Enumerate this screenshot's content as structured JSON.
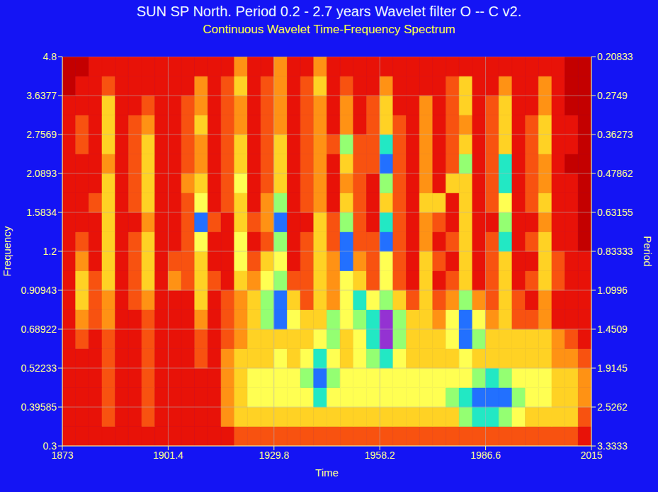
{
  "chart_data": {
    "type": "heatmap",
    "title": "SUN SP North. Period 0.2 - 2.7 years Wavelet filter O -- C v2.",
    "subtitle": "Continuous Wavelet Time-Frequency Spectrum",
    "x_label": "Time",
    "y_label": "Frequency",
    "y2_label": "Period",
    "log": "y",
    "grid": true,
    "xlim": [
      1873,
      2015
    ],
    "xticks": [
      1873,
      1901.4,
      1929.8,
      1958.2,
      1986.6,
      2015
    ],
    "ylim": [
      0.3,
      4.8
    ],
    "yticks": [
      0.3,
      0.39585,
      0.52233,
      0.68922,
      0.90943,
      1.2,
      1.5834,
      2.0893,
      2.7569,
      3.6377,
      4.8
    ],
    "y2lim": [
      3.3333,
      0.20833
    ],
    "y2ticks": [
      3.3333,
      2.5262,
      1.9145,
      1.4509,
      1.0996,
      0.83333,
      0.63155,
      0.47862,
      0.36273,
      0.2749,
      0.20833
    ],
    "x_edges": [
      1873,
      1876.55,
      1880.1,
      1883.65,
      1887.2,
      1890.75,
      1894.3,
      1897.85,
      1901.4,
      1904.95,
      1908.5,
      1912.05,
      1915.6,
      1919.15,
      1922.7,
      1926.25,
      1929.8,
      1933.35,
      1936.9,
      1940.45,
      1944,
      1947.55,
      1951.1,
      1954.65,
      1958.2,
      1961.75,
      1965.3,
      1968.85,
      1972.4,
      1975.95,
      1979.5,
      1983.05,
      1986.6,
      1990.15,
      1993.7,
      1997.25,
      2000.8,
      2004.35,
      2007.9,
      2011.45,
      2015
    ],
    "y_edges": [
      0.3,
      0.34462,
      0.39585,
      0.45472,
      0.52233,
      0.6,
      0.68922,
      0.79169,
      0.90943,
      1.0447,
      1.2,
      1.3784,
      1.5834,
      1.8189,
      2.0893,
      2.4,
      2.7569,
      3.1669,
      3.6377,
      4.1786,
      4.8
    ],
    "cells": [
      [
        1,
        1,
        1,
        1,
        1,
        1,
        1,
        1,
        1,
        1,
        1,
        1,
        1,
        2,
        2,
        2,
        2,
        2,
        2,
        2,
        2,
        2,
        2,
        2,
        2,
        2,
        2,
        2,
        2,
        2,
        2,
        2,
        2,
        2,
        2,
        2,
        2,
        2,
        2,
        1
      ],
      [
        1,
        1,
        1,
        2,
        1,
        1,
        2,
        1,
        1,
        1,
        1,
        1,
        3,
        4,
        4,
        4,
        4,
        4,
        4,
        4,
        4,
        4,
        4,
        4,
        4,
        4,
        4,
        4,
        4,
        4,
        6,
        7,
        7,
        6,
        5,
        4,
        4,
        4,
        4,
        2
      ],
      [
        1,
        1,
        1,
        2,
        1,
        1,
        2,
        1,
        1,
        1,
        1,
        1,
        3,
        4,
        5,
        5,
        5,
        5,
        5,
        7,
        5,
        5,
        5,
        5,
        5,
        5,
        5,
        5,
        5,
        6,
        7,
        8,
        8,
        8,
        6,
        5,
        5,
        4,
        4,
        3
      ],
      [
        1,
        1,
        1,
        2,
        1,
        1,
        2,
        1,
        1,
        1,
        1,
        1,
        3,
        4,
        5,
        5,
        5,
        5,
        6,
        8,
        6,
        5,
        5,
        5,
        5,
        5,
        5,
        5,
        5,
        5,
        5,
        6,
        7,
        6,
        5,
        5,
        5,
        4,
        4,
        3
      ],
      [
        1,
        1,
        1,
        2,
        1,
        1,
        2,
        1,
        1,
        1,
        2,
        1,
        3,
        4,
        4,
        4,
        5,
        4,
        5,
        7,
        5,
        4,
        5,
        6,
        7,
        5,
        4,
        4,
        4,
        4,
        5,
        4,
        4,
        4,
        4,
        4,
        4,
        3,
        3,
        2
      ],
      [
        1,
        2,
        1,
        2,
        1,
        1,
        2,
        1,
        1,
        1,
        2,
        1,
        2,
        3,
        4,
        4,
        4,
        4,
        4,
        5,
        6,
        4,
        5,
        7,
        9,
        6,
        4,
        4,
        4,
        5,
        8,
        6,
        4,
        4,
        4,
        4,
        4,
        3,
        2,
        1
      ],
      [
        1,
        3,
        2,
        3,
        1,
        1,
        2,
        1,
        1,
        1,
        3,
        1,
        2,
        3,
        4,
        6,
        8,
        5,
        4,
        4,
        6,
        5,
        6,
        7,
        9,
        6,
        4,
        4,
        3,
        5,
        8,
        5,
        3,
        4,
        2,
        2,
        3,
        1,
        1,
        1
      ],
      [
        1,
        4,
        2,
        3,
        1,
        2,
        3,
        1,
        1,
        1,
        4,
        1,
        2,
        3,
        4,
        6,
        8,
        4,
        2,
        4,
        3,
        5,
        7,
        5,
        6,
        4,
        2,
        4,
        2,
        3,
        6,
        3,
        2,
        4,
        2,
        1,
        3,
        1,
        1,
        1
      ],
      [
        1,
        4,
        2,
        4,
        1,
        2,
        4,
        1,
        3,
        2,
        4,
        2,
        1,
        4,
        3,
        5,
        6,
        2,
        2,
        4,
        3,
        5,
        4,
        2,
        5,
        2,
        1,
        4,
        1,
        2,
        4,
        1,
        2,
        4,
        1,
        2,
        4,
        2,
        1,
        1
      ],
      [
        1,
        3,
        1,
        4,
        1,
        2,
        4,
        1,
        2,
        2,
        4,
        1,
        1,
        5,
        2,
        4,
        5,
        1,
        2,
        4,
        3,
        8,
        3,
        2,
        5,
        2,
        1,
        4,
        2,
        1,
        4,
        1,
        2,
        4,
        1,
        1,
        4,
        2,
        1,
        1
      ],
      [
        1,
        2,
        1,
        4,
        1,
        2,
        4,
        1,
        1,
        2,
        5,
        1,
        1,
        5,
        1,
        2,
        6,
        1,
        2,
        4,
        2,
        8,
        2,
        2,
        8,
        2,
        1,
        3,
        1,
        2,
        4,
        1,
        2,
        7,
        1,
        2,
        4,
        1,
        1,
        0
      ],
      [
        1,
        1,
        1,
        4,
        1,
        1,
        3,
        1,
        1,
        2,
        8,
        2,
        1,
        4,
        2,
        3,
        8,
        1,
        1,
        4,
        2,
        6,
        2,
        1,
        7,
        2,
        1,
        3,
        2,
        1,
        4,
        1,
        1,
        6,
        1,
        1,
        3,
        1,
        1,
        0
      ],
      [
        1,
        1,
        2,
        4,
        1,
        2,
        4,
        1,
        1,
        2,
        5,
        1,
        2,
        4,
        1,
        3,
        6,
        1,
        2,
        3,
        1,
        4,
        2,
        1,
        4,
        2,
        1,
        4,
        4,
        1,
        4,
        1,
        2,
        5,
        1,
        2,
        4,
        1,
        1,
        0
      ],
      [
        1,
        1,
        1,
        4,
        1,
        2,
        4,
        1,
        1,
        3,
        4,
        1,
        2,
        5,
        1,
        2,
        4,
        1,
        2,
        3,
        1,
        3,
        2,
        1,
        6,
        2,
        1,
        3,
        1,
        4,
        4,
        1,
        2,
        7,
        1,
        2,
        3,
        1,
        1,
        0
      ],
      [
        1,
        1,
        1,
        3,
        1,
        2,
        4,
        1,
        1,
        2,
        3,
        1,
        2,
        4,
        1,
        2,
        4,
        1,
        2,
        3,
        1,
        4,
        2,
        2,
        8,
        2,
        1,
        3,
        1,
        2,
        6,
        1,
        2,
        7,
        1,
        2,
        3,
        1,
        0,
        0
      ],
      [
        1,
        2,
        1,
        4,
        1,
        2,
        4,
        1,
        1,
        2,
        3,
        1,
        2,
        4,
        1,
        2,
        4,
        1,
        2,
        3,
        2,
        6,
        2,
        2,
        7,
        2,
        1,
        3,
        1,
        2,
        4,
        1,
        2,
        4,
        1,
        2,
        4,
        1,
        1,
        0
      ],
      [
        1,
        2,
        1,
        4,
        1,
        2,
        3,
        1,
        1,
        2,
        4,
        1,
        2,
        3,
        1,
        2,
        3,
        1,
        2,
        3,
        1,
        3,
        1,
        2,
        4,
        2,
        1,
        3,
        1,
        2,
        3,
        1,
        2,
        4,
        1,
        2,
        4,
        1,
        1,
        0
      ],
      [
        1,
        1,
        1,
        4,
        1,
        1,
        2,
        1,
        1,
        2,
        3,
        1,
        2,
        3,
        1,
        2,
        3,
        1,
        2,
        3,
        1,
        3,
        1,
        2,
        4,
        1,
        1,
        3,
        1,
        2,
        4,
        1,
        2,
        4,
        1,
        1,
        3,
        1,
        0,
        0
      ],
      [
        0,
        1,
        1,
        2,
        1,
        1,
        1,
        1,
        1,
        1,
        3,
        1,
        2,
        4,
        1,
        2,
        3,
        1,
        2,
        4,
        1,
        2,
        1,
        1,
        3,
        1,
        1,
        1,
        1,
        2,
        4,
        1,
        1,
        3,
        1,
        1,
        3,
        1,
        0,
        0
      ],
      [
        0,
        0,
        1,
        1,
        1,
        1,
        1,
        1,
        1,
        1,
        1,
        1,
        1,
        3,
        1,
        1,
        3,
        1,
        1,
        3,
        1,
        1,
        1,
        1,
        1,
        1,
        1,
        1,
        1,
        1,
        1,
        1,
        1,
        1,
        1,
        1,
        1,
        1,
        0,
        0
      ]
    ]
  }
}
